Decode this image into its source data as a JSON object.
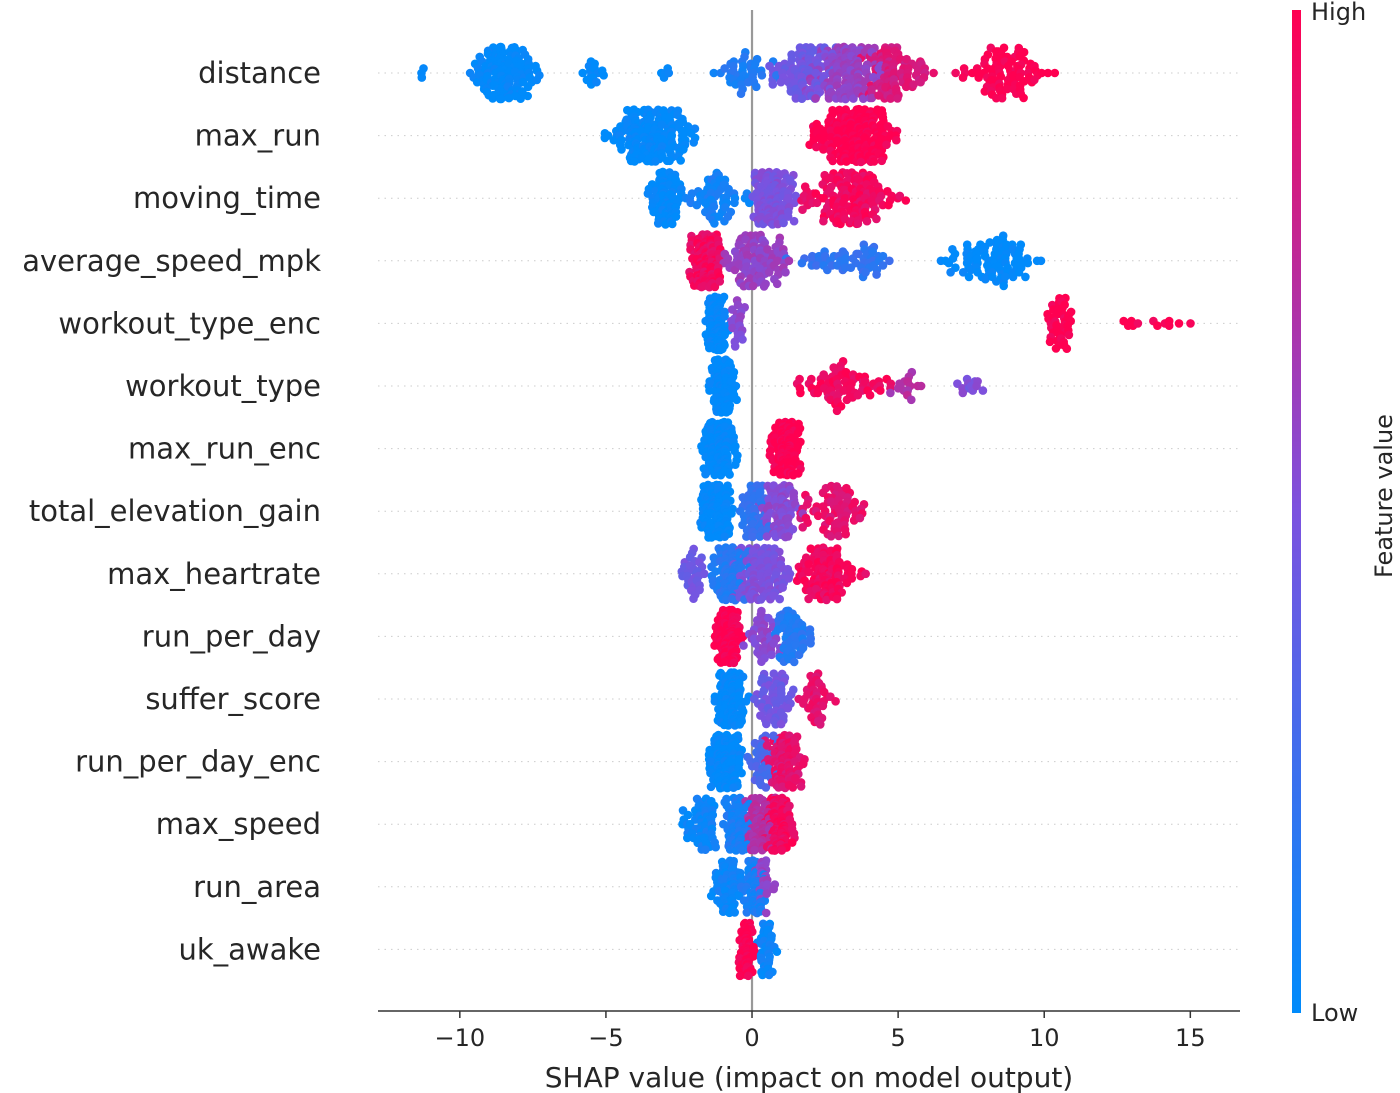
{
  "chart_data": {
    "type": "scatter",
    "subtype": "shap-beeswarm",
    "title": "",
    "xlabel": "SHAP value (impact on model output)",
    "ylabel": "",
    "xlim": [
      -12.8,
      16.7
    ],
    "xticks": [
      -10,
      -5,
      0,
      5,
      10,
      15
    ],
    "xtick_labels": [
      "−10",
      "−5",
      "0",
      "5",
      "10",
      "15"
    ],
    "grid": false,
    "zero_line": true,
    "colorbar": {
      "title": "Feature value",
      "high_label": "High",
      "low_label": "Low",
      "low_color": "#008bfb",
      "high_color": "#ff0051"
    },
    "features": [
      {
        "name": "distance",
        "groups": [
          {
            "range": [
              -11.4,
              -11.2
            ],
            "n": 3,
            "value": 0.0
          },
          {
            "range": [
              -9.8,
              -7.1
            ],
            "n": 140,
            "value": 0.0
          },
          {
            "range": [
              -6.0,
              -4.9
            ],
            "n": 14,
            "value": 0.0
          },
          {
            "range": [
              -3.2,
              -2.7
            ],
            "n": 5,
            "value": 0.0
          },
          {
            "range": [
              -1.4,
              1.0
            ],
            "n": 40,
            "value": 0.12
          },
          {
            "range": [
              0.5,
              3.0
            ],
            "n": 90,
            "value": 0.45
          },
          {
            "range": [
              1.8,
              4.5
            ],
            "n": 140,
            "value": 0.6
          },
          {
            "range": [
              3.5,
              6.3
            ],
            "n": 90,
            "value": 0.85
          },
          {
            "range": [
              6.8,
              10.4
            ],
            "n": 90,
            "value": 1.0
          }
        ]
      },
      {
        "name": "max_run",
        "groups": [
          {
            "range": [
              -5.1,
              -1.8
            ],
            "n": 170,
            "value": 0.0
          },
          {
            "range": [
              1.9,
              5.1
            ],
            "n": 230,
            "value": 1.0
          }
        ]
      },
      {
        "name": "moving_time",
        "groups": [
          {
            "range": [
              -3.6,
              -2.4
            ],
            "n": 90,
            "value": 0.0
          },
          {
            "range": [
              -2.4,
              0.0
            ],
            "n": 60,
            "value": 0.08
          },
          {
            "range": [
              -0.2,
              1.6
            ],
            "n": 120,
            "value": 0.5
          },
          {
            "range": [
              1.4,
              5.3
            ],
            "n": 140,
            "value": 0.95
          }
        ]
      },
      {
        "name": "average_speed_mpk",
        "groups": [
          {
            "range": [
              -2.2,
              -1.0
            ],
            "n": 130,
            "value": 0.95
          },
          {
            "range": [
              -1.1,
              1.5
            ],
            "n": 100,
            "value": 0.6
          },
          {
            "range": [
              1.0,
              5.6
            ],
            "n": 55,
            "value": 0.2
          },
          {
            "range": [
              6.4,
              9.9
            ],
            "n": 90,
            "value": 0.0
          }
        ]
      },
      {
        "name": "workout_type_enc",
        "groups": [
          {
            "range": [
              -1.6,
              -0.8
            ],
            "n": 140,
            "value": 0.0
          },
          {
            "range": [
              -0.8,
              -0.2
            ],
            "n": 20,
            "value": 0.55
          },
          {
            "range": [
              10.0,
              11.1
            ],
            "n": 45,
            "value": 1.0
          },
          {
            "range": [
              12.0,
              15.4
            ],
            "n": 12,
            "value": 1.0
          }
        ]
      },
      {
        "name": "workout_type",
        "groups": [
          {
            "range": [
              -1.5,
              -0.5
            ],
            "n": 120,
            "value": 0.0
          },
          {
            "range": [
              1.4,
              4.9
            ],
            "n": 70,
            "value": 0.95
          },
          {
            "range": [
              4.7,
              6.0
            ],
            "n": 15,
            "value": 0.7
          },
          {
            "range": [
              6.6,
              8.1
            ],
            "n": 12,
            "value": 0.5
          }
        ]
      },
      {
        "name": "max_run_enc",
        "groups": [
          {
            "range": [
              -1.8,
              -0.5
            ],
            "n": 160,
            "value": 0.0
          },
          {
            "range": [
              0.6,
              1.7
            ],
            "n": 160,
            "value": 1.0
          }
        ]
      },
      {
        "name": "total_elevation_gain",
        "groups": [
          {
            "range": [
              -1.9,
              -0.6
            ],
            "n": 130,
            "value": 0.0
          },
          {
            "range": [
              -0.5,
              0.6
            ],
            "n": 60,
            "value": 0.2
          },
          {
            "range": [
              0.2,
              1.8
            ],
            "n": 80,
            "value": 0.55
          },
          {
            "range": [
              1.5,
              4.0
            ],
            "n": 70,
            "value": 0.9
          }
        ]
      },
      {
        "name": "max_heartrate",
        "groups": [
          {
            "range": [
              -2.5,
              -1.5
            ],
            "n": 30,
            "value": 0.45
          },
          {
            "range": [
              -1.5,
              0.0
            ],
            "n": 110,
            "value": 0.15
          },
          {
            "range": [
              -0.8,
              1.4
            ],
            "n": 120,
            "value": 0.5
          },
          {
            "range": [
              1.3,
              3.9
            ],
            "n": 110,
            "value": 0.95
          }
        ]
      },
      {
        "name": "run_per_day",
        "groups": [
          {
            "range": [
              -1.3,
              -0.3
            ],
            "n": 140,
            "value": 1.0
          },
          {
            "range": [
              -0.3,
              1.0
            ],
            "n": 40,
            "value": 0.55
          },
          {
            "range": [
              0.6,
              2.1
            ],
            "n": 60,
            "value": 0.15
          }
        ]
      },
      {
        "name": "suffer_score",
        "groups": [
          {
            "range": [
              -1.3,
              -0.1
            ],
            "n": 140,
            "value": 0.0
          },
          {
            "range": [
              0.0,
              1.6
            ],
            "n": 60,
            "value": 0.45
          },
          {
            "range": [
              1.4,
              2.9
            ],
            "n": 40,
            "value": 0.9
          }
        ]
      },
      {
        "name": "run_per_day_enc",
        "groups": [
          {
            "range": [
              -1.5,
              -0.3
            ],
            "n": 170,
            "value": 0.0
          },
          {
            "range": [
              -0.3,
              1.0
            ],
            "n": 40,
            "value": 0.3
          },
          {
            "range": [
              0.4,
              1.8
            ],
            "n": 110,
            "value": 0.9
          }
        ]
      },
      {
        "name": "max_speed",
        "groups": [
          {
            "range": [
              -2.5,
              -1.0
            ],
            "n": 60,
            "value": 0.05
          },
          {
            "range": [
              -1.0,
              0.0
            ],
            "n": 100,
            "value": 0.1
          },
          {
            "range": [
              -0.3,
              0.8
            ],
            "n": 80,
            "value": 0.7
          },
          {
            "range": [
              0.4,
              1.5
            ],
            "n": 110,
            "value": 0.95
          }
        ]
      },
      {
        "name": "run_area",
        "groups": [
          {
            "range": [
              -1.4,
              -0.3
            ],
            "n": 70,
            "value": 0.05
          },
          {
            "range": [
              -0.4,
              0.5
            ],
            "n": 70,
            "value": 0.1
          },
          {
            "range": [
              0.0,
              0.8
            ],
            "n": 30,
            "value": 0.6
          }
        ]
      },
      {
        "name": "uk_awake",
        "groups": [
          {
            "range": [
              -0.5,
              0.1
            ],
            "n": 90,
            "value": 1.0
          },
          {
            "range": [
              0.1,
              0.9
            ],
            "n": 40,
            "value": 0.05
          }
        ]
      }
    ]
  }
}
